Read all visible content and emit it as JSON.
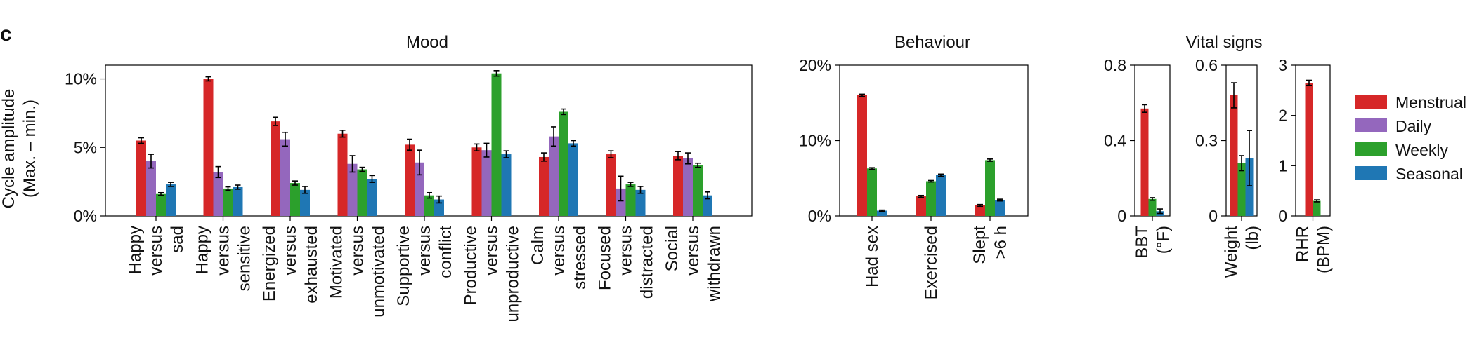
{
  "panel_label": "c",
  "y_axis_label": [
    "Cycle amplitude",
    "(Max. – min.)"
  ],
  "legend": [
    {
      "name": "Menstrual",
      "color": "#d62728"
    },
    {
      "name": "Daily",
      "color": "#9467bd"
    },
    {
      "name": "Weekly",
      "color": "#2ca02c"
    },
    {
      "name": "Seasonal",
      "color": "#1f77b4"
    }
  ],
  "chart_data": [
    {
      "type": "bar",
      "title": "Mood",
      "y_ticks": [
        "0%",
        "5%",
        "10%"
      ],
      "y_tick_values": [
        0,
        5,
        10
      ],
      "ylim": [
        0,
        11
      ],
      "categories": [
        [
          "Happy",
          "versus",
          "sad"
        ],
        [
          "Happy",
          "versus",
          "sensitive"
        ],
        [
          "Energized",
          "versus",
          "exhausted"
        ],
        [
          "Motivated",
          "versus",
          "unmotivated"
        ],
        [
          "Supportive",
          "versus",
          "conflict"
        ],
        [
          "Productive",
          "versus",
          "unproductive"
        ],
        [
          "Calm",
          "versus",
          "stressed"
        ],
        [
          "Focused",
          "versus",
          "distracted"
        ],
        [
          "Social",
          "versus",
          "withdrawn"
        ]
      ],
      "series": [
        {
          "name": "Menstrual",
          "values": [
            5.5,
            10.0,
            6.9,
            6.0,
            5.2,
            5.0,
            4.3,
            4.5,
            4.4
          ],
          "errors": [
            0.2,
            0.15,
            0.3,
            0.25,
            0.4,
            0.25,
            0.3,
            0.25,
            0.3
          ]
        },
        {
          "name": "Daily",
          "values": [
            4.0,
            3.2,
            5.6,
            3.8,
            3.9,
            4.8,
            5.8,
            2.0,
            4.2
          ],
          "errors": [
            0.5,
            0.4,
            0.5,
            0.6,
            0.9,
            0.5,
            0.7,
            0.9,
            0.4
          ]
        },
        {
          "name": "Weekly",
          "values": [
            1.6,
            2.0,
            2.4,
            3.4,
            1.5,
            10.4,
            7.6,
            2.3,
            3.7
          ],
          "errors": [
            0.1,
            0.12,
            0.15,
            0.15,
            0.2,
            0.2,
            0.2,
            0.15,
            0.15
          ]
        },
        {
          "name": "Seasonal",
          "values": [
            2.3,
            2.1,
            1.9,
            2.7,
            1.2,
            4.5,
            5.3,
            1.9,
            1.5
          ],
          "errors": [
            0.15,
            0.15,
            0.25,
            0.25,
            0.25,
            0.25,
            0.2,
            0.25,
            0.25
          ]
        }
      ]
    },
    {
      "type": "bar",
      "title": "Behaviour",
      "y_ticks": [
        "0%",
        "10%",
        "20%"
      ],
      "y_tick_values": [
        0,
        10,
        20
      ],
      "ylim": [
        0,
        20
      ],
      "categories": [
        [
          "Had sex"
        ],
        [
          "Exercised"
        ],
        [
          "Slept",
          ">6 h"
        ]
      ],
      "series": [
        {
          "name": "Menstrual",
          "values": [
            16.0,
            2.6,
            1.4
          ],
          "errors": [
            0.15,
            0.12,
            0.12
          ]
        },
        {
          "name": "Weekly",
          "values": [
            6.3,
            4.6,
            7.4
          ],
          "errors": [
            0.1,
            0.1,
            0.15
          ]
        },
        {
          "name": "Seasonal",
          "values": [
            0.7,
            5.4,
            2.1
          ],
          "errors": [
            0.08,
            0.15,
            0.12
          ]
        }
      ]
    },
    {
      "type": "bar",
      "title": "Vital signs",
      "subplots": [
        {
          "category": [
            "BBT",
            "(°F)"
          ],
          "y_ticks": [
            "0",
            "0.4",
            "0.8"
          ],
          "y_tick_values": [
            0,
            0.4,
            0.8
          ],
          "ylim": [
            0,
            0.8
          ],
          "series": [
            {
              "name": "Menstrual",
              "values": [
                0.57
              ],
              "errors": [
                0.02
              ]
            },
            {
              "name": "Weekly",
              "values": [
                0.09
              ],
              "errors": [
                0.007
              ]
            },
            {
              "name": "Seasonal",
              "values": [
                0.025
              ],
              "errors": [
                0.012
              ]
            }
          ]
        },
        {
          "category": [
            "Weight",
            "(lb)"
          ],
          "y_ticks": [
            "0",
            "0.3",
            "0.6"
          ],
          "y_tick_values": [
            0,
            0.3,
            0.6
          ],
          "ylim": [
            0,
            0.6
          ],
          "series": [
            {
              "name": "Menstrual",
              "values": [
                0.48
              ],
              "errors": [
                0.05
              ]
            },
            {
              "name": "Weekly",
              "values": [
                0.21
              ],
              "errors": [
                0.03
              ]
            },
            {
              "name": "Seasonal",
              "values": [
                0.23
              ],
              "errors": [
                0.11
              ]
            }
          ]
        },
        {
          "category": [
            "RHR",
            "(BPM)"
          ],
          "y_ticks": [
            "0",
            "1",
            "2",
            "3"
          ],
          "y_tick_values": [
            0,
            1,
            2,
            3
          ],
          "ylim": [
            0,
            3
          ],
          "series": [
            {
              "name": "Menstrual",
              "values": [
                2.65
              ],
              "errors": [
                0.05
              ]
            },
            {
              "name": "Weekly",
              "values": [
                0.3
              ],
              "errors": [
                0.02
              ]
            }
          ]
        }
      ]
    }
  ]
}
